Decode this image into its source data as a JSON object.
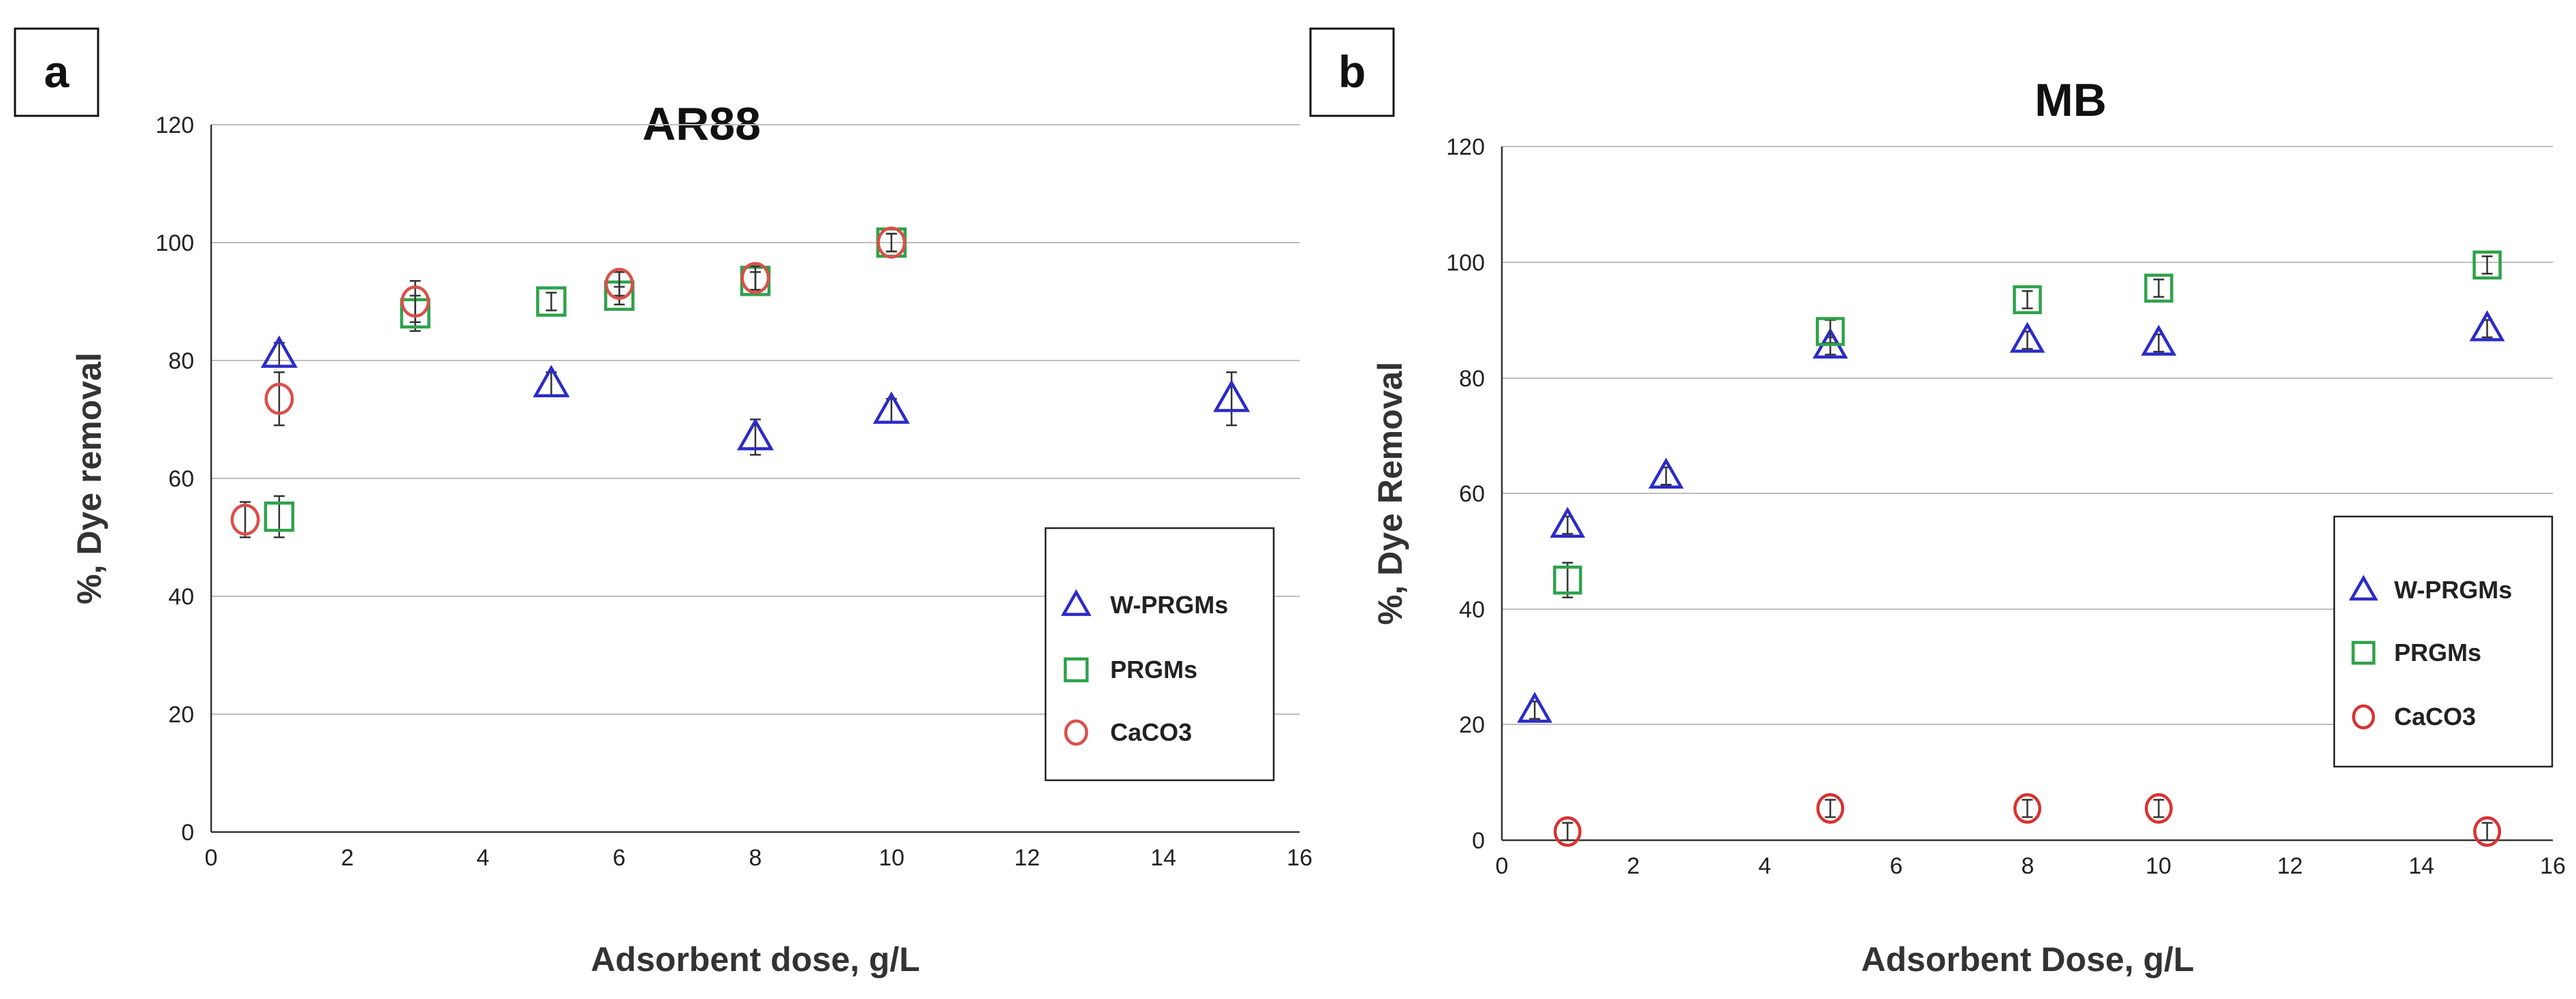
{
  "chart_data": [
    {
      "type": "scatter",
      "panel_label": "a",
      "title": "AR88",
      "xlabel": "Adsorbent dose, g/L",
      "ylabel": "%, Dye removal",
      "xlim": [
        0,
        16
      ],
      "ylim": [
        0,
        120
      ],
      "x_ticks": [
        0,
        2,
        4,
        6,
        8,
        10,
        12,
        14,
        16
      ],
      "y_ticks": [
        0,
        20,
        40,
        60,
        80,
        100,
        120
      ],
      "legend_position": "right",
      "series": [
        {
          "name": "W-PRGMs",
          "marker": "triangle",
          "color": "#2b2bc8",
          "x": [
            1,
            5,
            8,
            10,
            15
          ],
          "y": [
            81,
            76,
            67,
            71.5,
            73.5
          ],
          "err": [
            2,
            2,
            3,
            2,
            4.5
          ]
        },
        {
          "name": "PRGMs",
          "marker": "square",
          "color": "#2ea24a",
          "x": [
            1,
            3,
            5,
            6,
            8,
            10
          ],
          "y": [
            53.5,
            88,
            90,
            91,
            93.5,
            100
          ],
          "err": [
            3.5,
            3,
            1.5,
            1.5,
            1.5,
            1.5
          ]
        },
        {
          "name": "CaCO3",
          "marker": "circle",
          "color": "#d9504a",
          "x": [
            0.5,
            1,
            3,
            6,
            8,
            10
          ],
          "y": [
            53,
            73.5,
            90,
            93,
            94,
            100
          ],
          "err": [
            3,
            4.5,
            3.5,
            2,
            2,
            1.5
          ]
        }
      ]
    },
    {
      "type": "scatter",
      "panel_label": "b",
      "title": "MB",
      "xlabel": "Adsorbent Dose, g/L",
      "ylabel": "%, Dye Removal",
      "xlim": [
        0,
        16
      ],
      "ylim": [
        0,
        120
      ],
      "x_ticks": [
        0,
        2,
        4,
        6,
        8,
        10,
        12,
        14,
        16
      ],
      "y_ticks": [
        0,
        20,
        40,
        60,
        80,
        100,
        120
      ],
      "legend_position": "right",
      "series": [
        {
          "name": "W-PRGMs",
          "marker": "triangle",
          "color": "#2b2bc8",
          "x": [
            0.5,
            1,
            2.5,
            5,
            8,
            10,
            15
          ],
          "y": [
            22.5,
            54.5,
            63,
            85.5,
            86.5,
            86,
            88.5
          ],
          "err": [
            1.5,
            1.5,
            1.5,
            1.5,
            1.5,
            1.5,
            1.5
          ]
        },
        {
          "name": "PRGMs",
          "marker": "square",
          "color": "#2ea24a",
          "x": [
            1,
            5,
            8,
            10,
            15
          ],
          "y": [
            45,
            88,
            93.5,
            95.5,
            99.5
          ],
          "err": [
            3,
            2,
            1.5,
            1.5,
            1.5
          ]
        },
        {
          "name": "CaCO3",
          "marker": "circle",
          "color": "#d83232",
          "x": [
            1,
            5,
            8,
            10,
            15
          ],
          "y": [
            1.5,
            5.5,
            5.5,
            5.5,
            1.5
          ],
          "err": [
            1.5,
            1.5,
            1.5,
            1.5,
            1.5
          ]
        }
      ]
    }
  ]
}
